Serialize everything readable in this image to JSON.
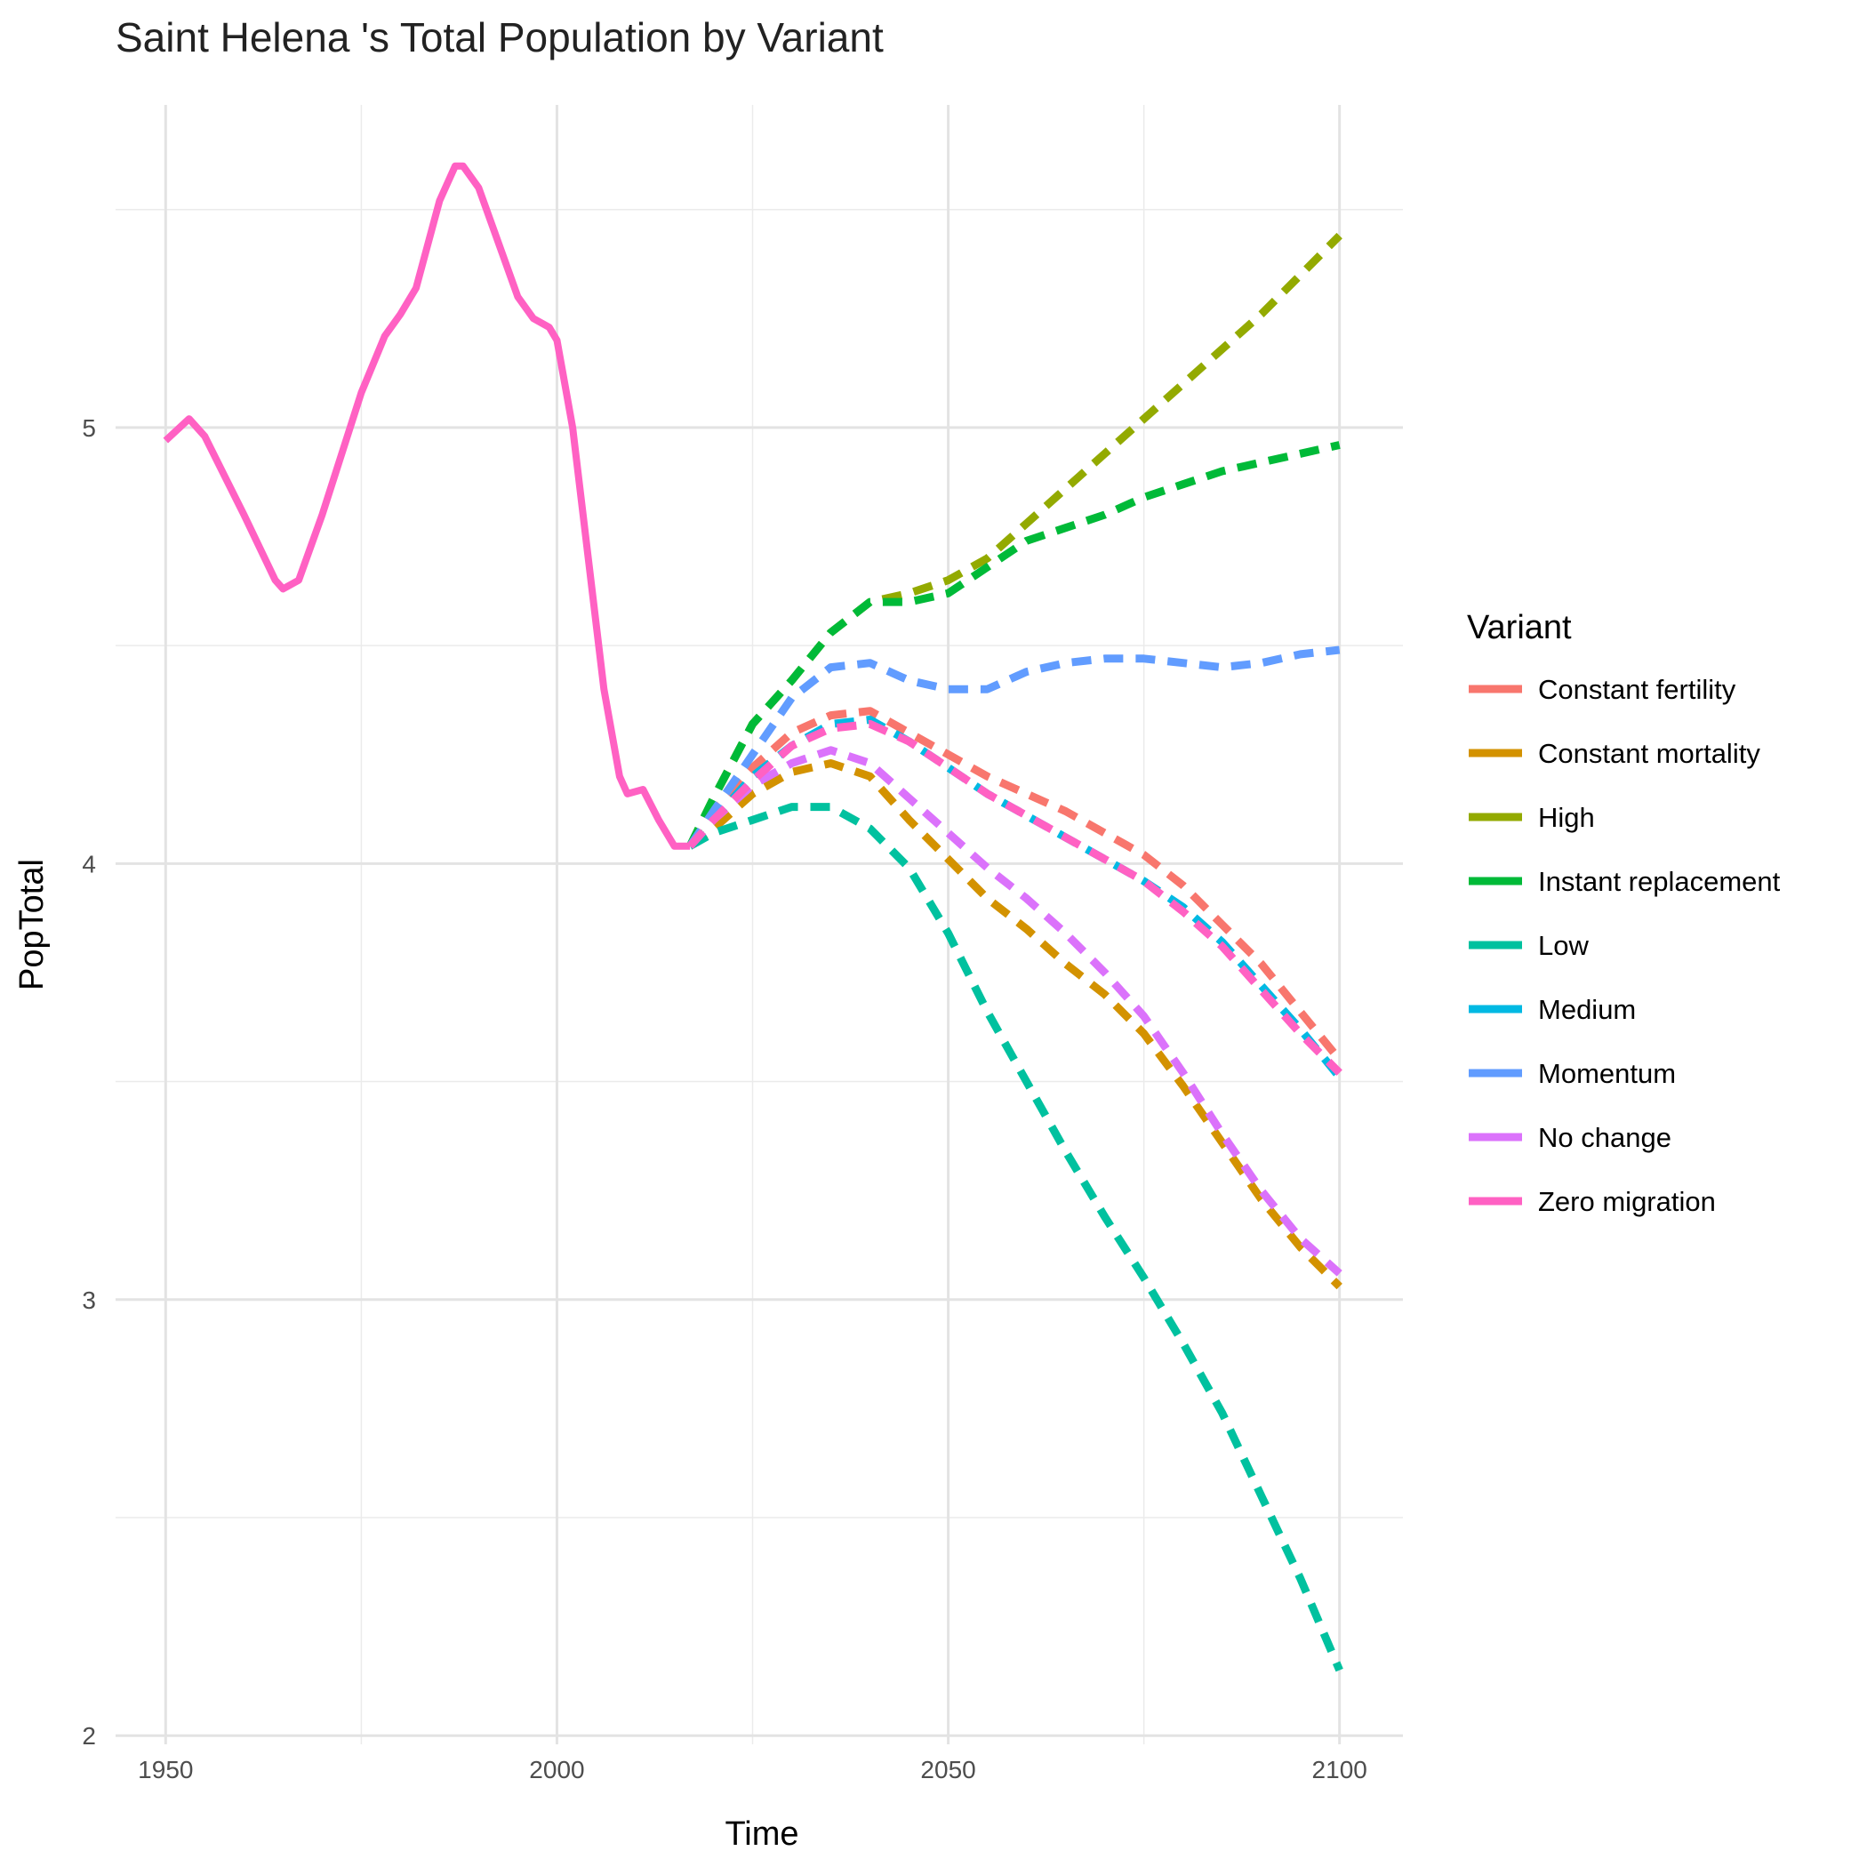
{
  "chart_data": {
    "type": "line",
    "title": "Saint Helena 's Total Population by Variant",
    "x_label": "Time",
    "y_label": "PopTotal",
    "legend_title": "Variant",
    "xlim": [
      1943.6,
      2108.1
    ],
    "xticks": [
      1950,
      2000,
      2050,
      2100
    ],
    "xminorticks": [
      1975,
      2025,
      2075
    ],
    "ylim": [
      1.98,
      5.74
    ],
    "yticks": [
      2,
      3,
      4,
      5
    ],
    "yminorticks": [
      2.5,
      3.5,
      4.5,
      5.5
    ],
    "grid": true,
    "legend": "right",
    "series": [
      {
        "name": "Constant fertility",
        "color": "#F8766D",
        "x": [
          2017,
          2020,
          2025,
          2030,
          2035,
          2040,
          2045,
          2050,
          2055,
          2060,
          2065,
          2070,
          2075,
          2080,
          2085,
          2090,
          2095,
          2100
        ],
        "values": [
          4.04,
          4.12,
          4.22,
          4.3,
          4.34,
          4.35,
          4.3,
          4.25,
          4.2,
          4.16,
          4.12,
          4.07,
          4.02,
          3.95,
          3.86,
          3.77,
          3.66,
          3.55
        ]
      },
      {
        "name": "Constant mortality",
        "color": "#D39200",
        "x": [
          2017,
          2020,
          2025,
          2030,
          2035,
          2040,
          2045,
          2050,
          2055,
          2060,
          2065,
          2070,
          2075,
          2080,
          2085,
          2090,
          2095,
          2100
        ],
        "values": [
          4.04,
          4.08,
          4.16,
          4.21,
          4.23,
          4.2,
          4.1,
          4.01,
          3.92,
          3.85,
          3.77,
          3.7,
          3.61,
          3.49,
          3.36,
          3.23,
          3.12,
          3.03
        ]
      },
      {
        "name": "High",
        "color": "#93AA00",
        "x": [
          2017,
          2020,
          2025,
          2030,
          2035,
          2040,
          2045,
          2050,
          2055,
          2060,
          2065,
          2070,
          2075,
          2080,
          2085,
          2090,
          2095,
          2100
        ],
        "values": [
          4.04,
          4.15,
          4.32,
          4.42,
          4.53,
          4.6,
          4.62,
          4.65,
          4.7,
          4.78,
          4.86,
          4.94,
          5.02,
          5.1,
          5.18,
          5.26,
          5.35,
          5.44
        ]
      },
      {
        "name": "Instant replacement",
        "color": "#00BA38",
        "x": [
          2017,
          2020,
          2025,
          2030,
          2035,
          2040,
          2045,
          2050,
          2055,
          2060,
          2065,
          2070,
          2075,
          2080,
          2085,
          2090,
          2095,
          2100
        ],
        "values": [
          4.04,
          4.15,
          4.32,
          4.42,
          4.53,
          4.6,
          4.6,
          4.62,
          4.68,
          4.74,
          4.77,
          4.8,
          4.84,
          4.87,
          4.9,
          4.92,
          4.94,
          4.96
        ]
      },
      {
        "name": "Low",
        "color": "#00C19F",
        "x": [
          2017,
          2020,
          2025,
          2030,
          2035,
          2040,
          2045,
          2050,
          2055,
          2060,
          2065,
          2070,
          2075,
          2080,
          2085,
          2090,
          2095,
          2100
        ],
        "values": [
          4.04,
          4.07,
          4.1,
          4.13,
          4.13,
          4.08,
          3.99,
          3.84,
          3.66,
          3.5,
          3.34,
          3.19,
          3.05,
          2.9,
          2.74,
          2.55,
          2.36,
          2.15
        ]
      },
      {
        "name": "Medium",
        "color": "#00B9E3",
        "x": [
          2017,
          2020,
          2025,
          2030,
          2035,
          2040,
          2045,
          2050,
          2055,
          2060,
          2065,
          2070,
          2075,
          2080,
          2085,
          2090,
          2095,
          2100
        ],
        "values": [
          4.04,
          4.1,
          4.2,
          4.27,
          4.32,
          4.33,
          4.28,
          4.22,
          4.16,
          4.11,
          4.06,
          4.01,
          3.96,
          3.9,
          3.82,
          3.72,
          3.62,
          3.51
        ]
      },
      {
        "name": "Momentum",
        "color": "#619CFF",
        "x": [
          2017,
          2020,
          2025,
          2030,
          2035,
          2040,
          2045,
          2050,
          2055,
          2060,
          2065,
          2070,
          2075,
          2080,
          2085,
          2090,
          2095,
          2100
        ],
        "values": [
          4.04,
          4.12,
          4.25,
          4.38,
          4.45,
          4.46,
          4.42,
          4.4,
          4.4,
          4.44,
          4.46,
          4.47,
          4.47,
          4.46,
          4.45,
          4.46,
          4.48,
          4.49
        ]
      },
      {
        "name": "No change",
        "color": "#DB72FB",
        "x": [
          2017,
          2020,
          2025,
          2030,
          2035,
          2040,
          2045,
          2050,
          2055,
          2060,
          2065,
          2070,
          2075,
          2080,
          2085,
          2090,
          2095,
          2100
        ],
        "values": [
          4.04,
          4.1,
          4.18,
          4.23,
          4.26,
          4.23,
          4.15,
          4.07,
          3.99,
          3.92,
          3.84,
          3.75,
          3.65,
          3.52,
          3.38,
          3.25,
          3.14,
          3.06
        ]
      },
      {
        "name": "Zero migration",
        "color": "#FF61C3",
        "x": [
          1950,
          1953,
          1955,
          1960,
          1964,
          1965,
          1967,
          1970,
          1975,
          1978,
          1980,
          1982,
          1985,
          1987,
          1988,
          1990,
          1993,
          1995,
          1997,
          1999,
          2000,
          2002,
          2004,
          2006,
          2008,
          2009,
          2011,
          2013,
          2015,
          2017,
          2020,
          2025,
          2030,
          2035,
          2040,
          2045,
          2050,
          2055,
          2060,
          2065,
          2070,
          2075,
          2080,
          2085,
          2090,
          2095,
          2100
        ],
        "values": [
          4.97,
          5.02,
          4.98,
          4.8,
          4.65,
          4.63,
          4.65,
          4.8,
          5.08,
          5.21,
          5.26,
          5.32,
          5.52,
          5.6,
          5.6,
          5.55,
          5.4,
          5.3,
          5.25,
          5.23,
          5.2,
          5.0,
          4.7,
          4.4,
          4.2,
          4.16,
          4.17,
          4.1,
          4.04,
          4.04,
          4.1,
          4.19,
          4.27,
          4.31,
          4.32,
          4.28,
          4.22,
          4.16,
          4.11,
          4.06,
          4.01,
          3.96,
          3.89,
          3.81,
          3.71,
          3.61,
          3.52
        ]
      }
    ]
  }
}
